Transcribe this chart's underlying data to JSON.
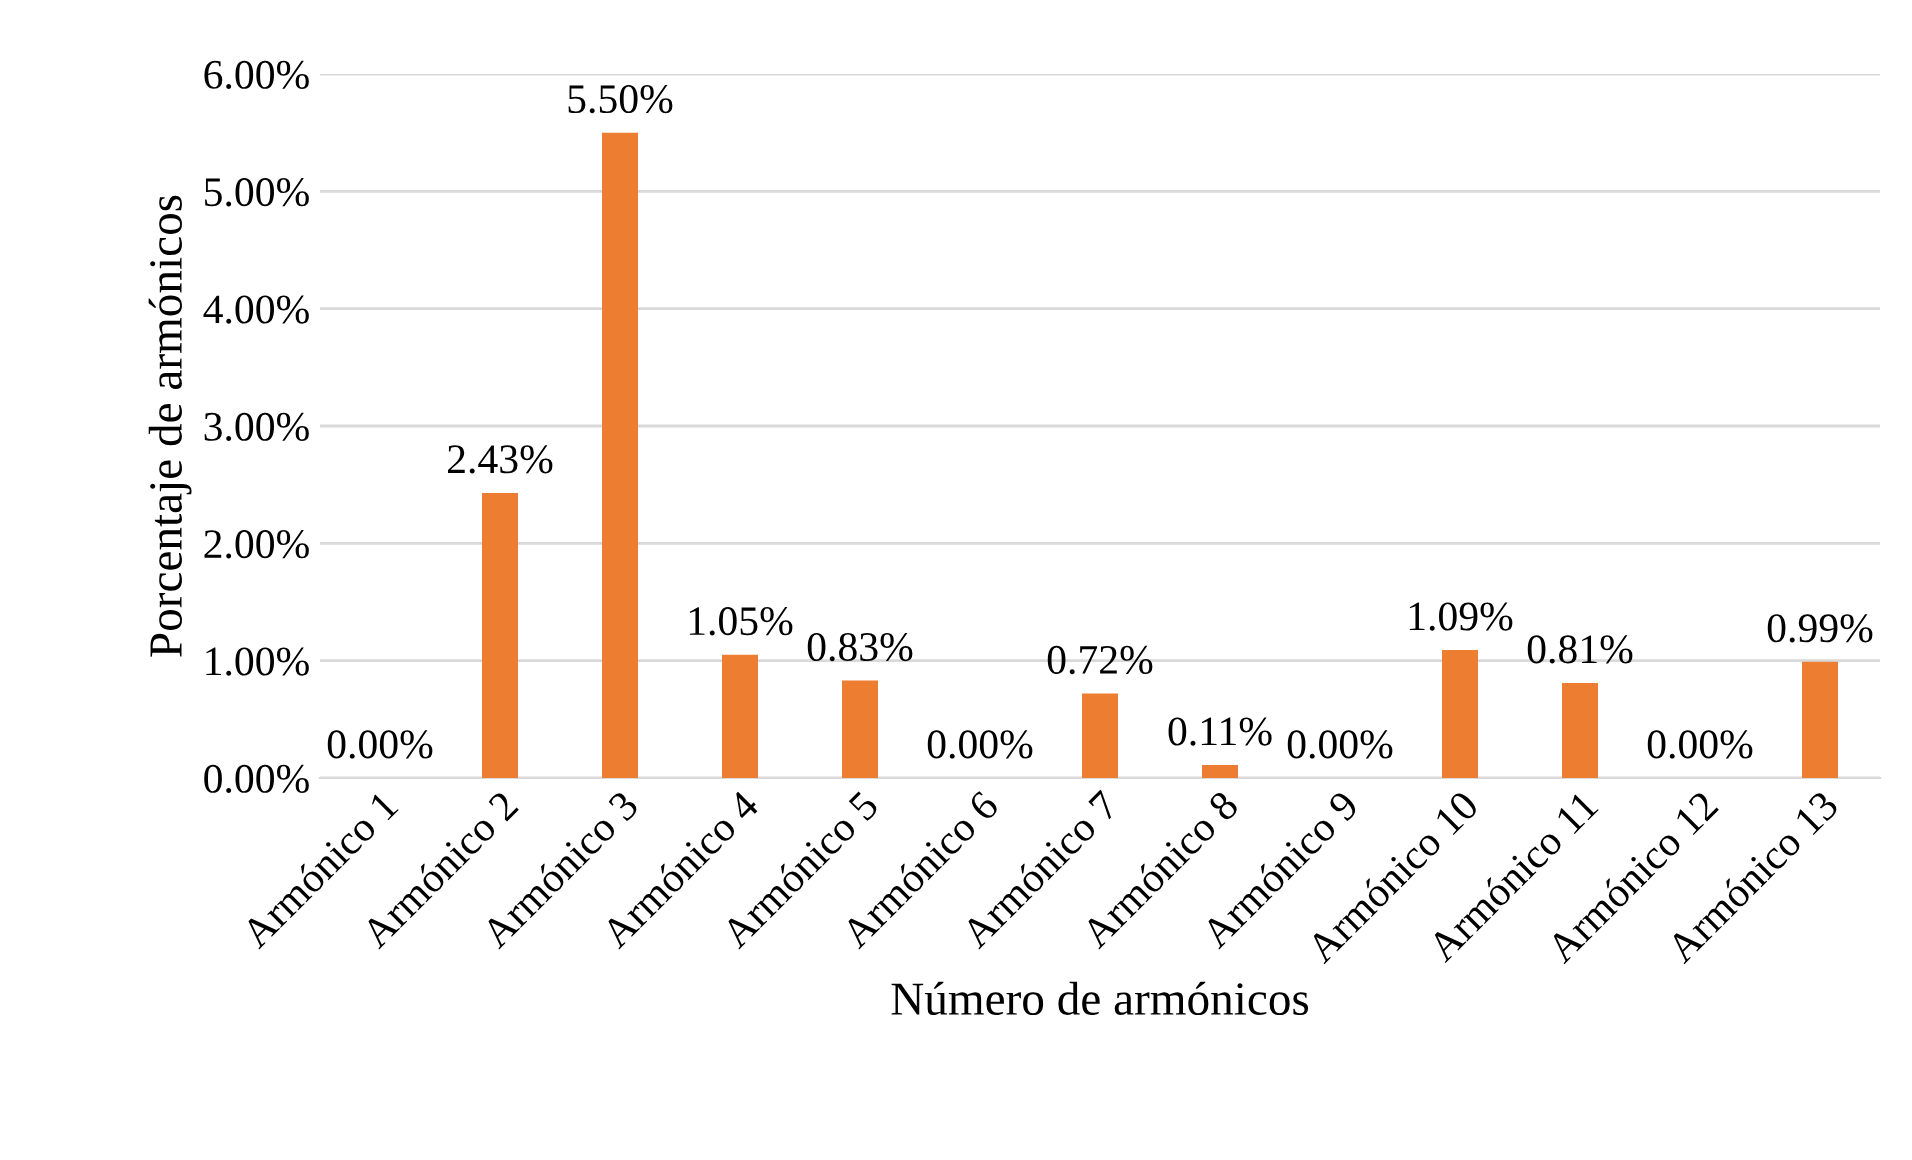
{
  "chart_data": {
    "type": "bar",
    "xlabel": "Número de armónicos",
    "ylabel": "Porcentaje de armónicos",
    "categories": [
      "Armónico 1",
      "Armónico 2",
      "Armónico 3",
      "Armónico 4",
      "Armónico 5",
      "Armónico 6",
      "Armónico 7",
      "Armónico 8",
      "Armónico 9",
      "Armónico 10",
      "Armónico 11",
      "Armónico 12",
      "Armónico 13"
    ],
    "values": [
      0,
      2.43,
      5.5,
      1.05,
      0.83,
      0,
      0.72,
      0.11,
      0,
      1.09,
      0.81,
      0,
      0.99
    ],
    "value_labels": [
      "0.00%",
      "2.43%",
      "5.50%",
      "1.05%",
      "0.83%",
      "0.00%",
      "0.72%",
      "0.11%",
      "0.00%",
      "1.09%",
      "0.81%",
      "0.00%",
      "0.99%"
    ],
    "color": "#ed7d31",
    "ylim": [
      0,
      6
    ],
    "yticks": [
      {
        "value": 0,
        "label": "0.00%"
      },
      {
        "value": 1,
        "label": "1.00%"
      },
      {
        "value": 2,
        "label": "2.00%"
      },
      {
        "value": 3,
        "label": "3.00%"
      },
      {
        "value": 4,
        "label": "4.00%"
      },
      {
        "value": 5,
        "label": "5.00%"
      },
      {
        "value": 6,
        "label": "6.00%"
      }
    ],
    "grid": "y",
    "legend": false
  }
}
